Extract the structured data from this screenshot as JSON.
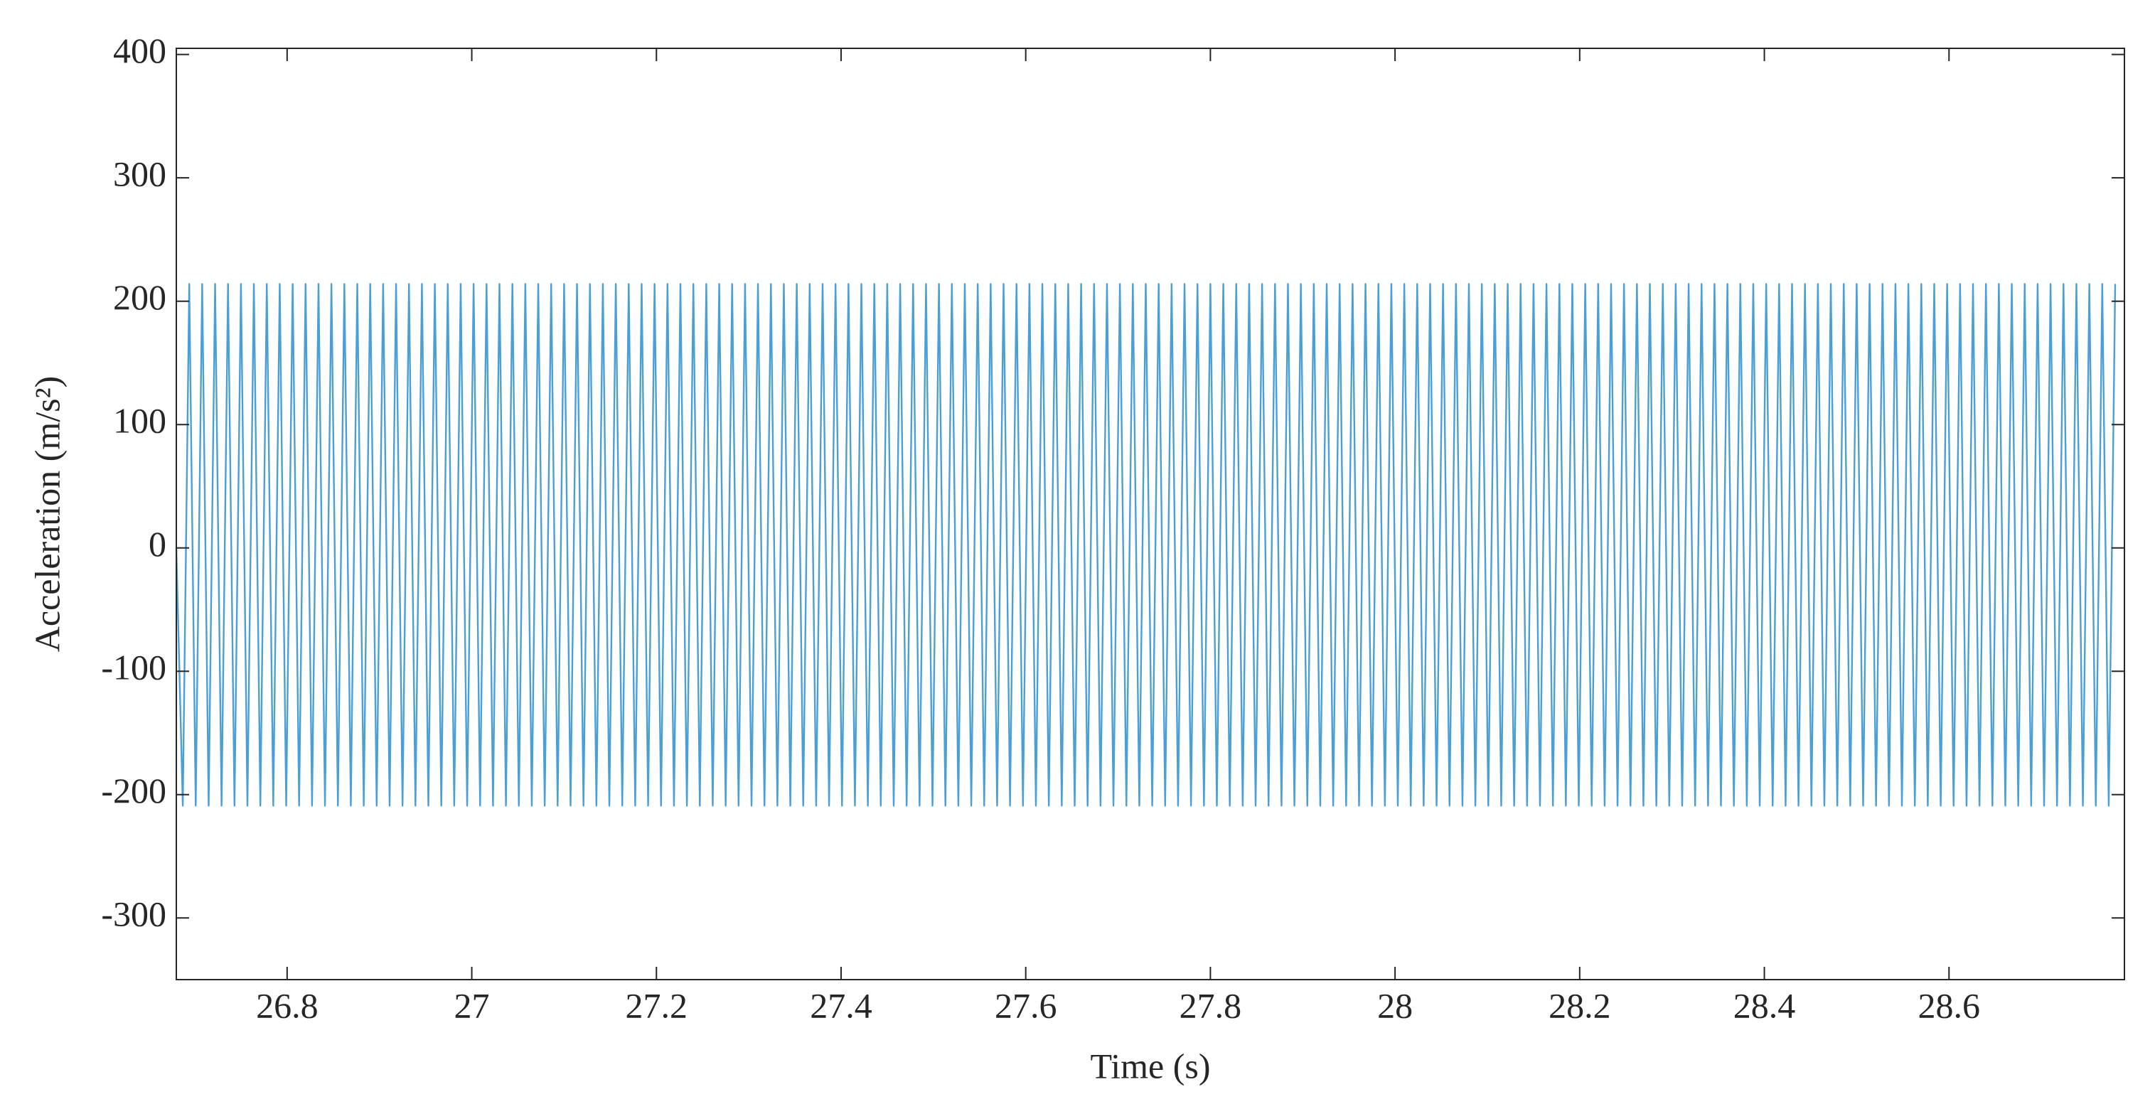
{
  "chart_data": {
    "type": "line",
    "xlabel": "Time (s)",
    "ylabel": "Acceleration (m/s²)",
    "color": "#4a9fd6",
    "xlim": [
      26.68,
      28.79
    ],
    "ylim": [
      -350,
      405
    ],
    "xticks": [
      26.8,
      27,
      27.2,
      27.4,
      27.6,
      27.8,
      28,
      28.2,
      28.4,
      28.6
    ],
    "yticks": [
      -300,
      -200,
      -100,
      0,
      100,
      200,
      300,
      400
    ],
    "x": [
      26.68,
      26.687,
      26.694,
      26.701,
      26.708,
      26.715,
      26.722,
      26.729,
      26.736,
      26.743,
      26.75,
      26.757,
      26.764,
      26.771,
      26.778,
      26.785,
      26.792,
      26.799,
      26.806,
      26.813,
      26.82,
      26.827,
      26.834,
      26.841,
      26.848,
      26.855,
      26.862,
      26.869,
      26.876,
      26.883,
      26.89,
      26.897,
      26.904,
      26.911,
      26.918,
      26.925,
      26.932,
      26.939,
      26.946,
      26.953,
      26.96,
      26.967,
      26.974,
      26.981,
      26.988,
      26.995,
      27.002,
      27.009,
      27.016,
      27.023,
      27.03,
      27.037,
      27.044,
      27.051,
      27.058,
      27.065,
      27.072,
      27.079,
      27.086,
      27.093,
      27.1,
      27.107,
      27.114,
      27.121,
      27.128,
      27.135,
      27.142,
      27.149,
      27.156,
      27.163,
      27.17,
      27.177,
      27.184,
      27.191,
      27.198,
      27.205,
      27.212,
      27.219,
      27.226,
      27.233,
      27.24,
      27.247,
      27.254,
      27.261,
      27.268,
      27.275,
      27.282,
      27.289,
      27.296,
      27.303,
      27.31,
      27.317,
      27.324,
      27.331,
      27.338,
      27.345,
      27.352,
      27.359,
      27.366,
      27.373,
      27.38,
      27.387,
      27.394,
      27.401,
      27.408,
      27.415,
      27.422,
      27.429,
      27.436,
      27.443,
      27.45,
      27.457,
      27.464,
      27.471,
      27.478,
      27.485,
      27.492,
      27.499,
      27.506,
      27.513,
      27.52,
      27.527,
      27.534,
      27.541,
      27.548,
      27.555,
      27.562,
      27.569,
      27.576,
      27.583,
      27.59,
      27.597,
      27.604,
      27.611,
      27.618,
      27.625,
      27.632,
      27.639,
      27.646,
      27.653,
      27.66,
      27.667,
      27.674,
      27.681,
      27.688,
      27.695,
      27.702,
      27.709,
      27.716,
      27.723,
      27.73,
      27.737,
      27.744,
      27.751,
      27.758,
      27.765,
      27.772,
      27.779,
      27.786,
      27.793,
      27.8,
      27.807,
      27.814,
      27.821,
      27.828,
      27.835,
      27.842,
      27.849,
      27.856,
      27.863,
      27.87,
      27.877,
      27.884,
      27.891,
      27.898,
      27.905,
      27.912,
      27.919,
      27.926,
      27.933,
      27.94,
      27.947,
      27.954,
      27.961,
      27.968,
      27.975,
      27.982,
      27.989,
      27.996,
      28.003,
      28.01,
      28.017,
      28.024,
      28.031,
      28.038,
      28.045,
      28.052,
      28.059,
      28.066,
      28.073,
      28.08,
      28.087,
      28.094,
      28.101,
      28.108,
      28.115,
      28.122,
      28.129,
      28.136,
      28.143,
      28.15,
      28.157,
      28.164,
      28.171,
      28.178,
      28.185,
      28.192,
      28.199,
      28.206,
      28.213,
      28.22,
      28.227,
      28.234,
      28.241,
      28.248,
      28.255,
      28.262,
      28.269,
      28.276,
      28.283,
      28.29,
      28.297,
      28.304,
      28.311,
      28.318,
      28.325,
      28.332,
      28.339,
      28.346,
      28.353,
      28.36,
      28.367,
      28.374,
      28.381,
      28.388,
      28.395,
      28.402,
      28.409,
      28.416,
      28.423,
      28.43,
      28.437,
      28.444,
      28.451,
      28.458,
      28.465,
      28.472,
      28.479,
      28.486,
      28.493,
      28.5,
      28.507,
      28.514,
      28.521,
      28.528,
      28.535,
      28.542,
      28.549,
      28.556,
      28.563,
      28.57,
      28.577,
      28.584,
      28.591,
      28.598,
      28.605,
      28.612,
      28.619,
      28.626,
      28.633,
      28.64,
      28.647,
      28.654,
      28.661,
      28.668,
      28.675,
      28.682,
      28.689,
      28.696,
      28.703,
      28.71,
      28.717,
      28.724,
      28.731,
      28.738,
      28.745,
      28.752,
      28.759,
      28.766,
      28.773,
      28.78
    ],
    "values": [
      0,
      -209,
      214,
      -209,
      214,
      -209,
      214,
      -209,
      214,
      -209,
      214,
      -209,
      214,
      -209,
      214,
      -209,
      214,
      -209,
      214,
      -209,
      214,
      -209,
      214,
      -209,
      214,
      -209,
      214,
      -209,
      214,
      -209,
      214,
      -209,
      214,
      -209,
      214,
      -209,
      214,
      -209,
      214,
      -209,
      214,
      -209,
      214,
      -209,
      214,
      -209,
      214,
      -209,
      214,
      -209,
      214,
      -209,
      214,
      -209,
      214,
      -209,
      214,
      -209,
      214,
      -209,
      214,
      -209,
      214,
      -209,
      214,
      -209,
      214,
      -209,
      214,
      -209,
      214,
      -209,
      214,
      -209,
      214,
      -209,
      214,
      -209,
      214,
      -209,
      214,
      -209,
      214,
      -209,
      214,
      -209,
      214,
      -209,
      214,
      -209,
      214,
      -209,
      214,
      -209,
      214,
      -209,
      214,
      -209,
      214,
      -209,
      214,
      -209,
      214,
      -209,
      214,
      -209,
      214,
      -209,
      214,
      -209,
      214,
      -209,
      214,
      -209,
      214,
      -209,
      214,
      -209,
      214,
      -209,
      214,
      -209,
      214,
      -209,
      214,
      -209,
      214,
      -209,
      214,
      -209,
      214,
      -209,
      214,
      -209,
      214,
      -209,
      214,
      -209,
      214,
      -209,
      214,
      -209,
      214,
      -209,
      214,
      -209,
      214,
      -209,
      214,
      -209,
      214,
      -209,
      214,
      -209,
      214,
      -209,
      214,
      -209,
      214,
      -209,
      214,
      -209,
      214,
      -209,
      214,
      -209,
      214,
      -209,
      214,
      -209,
      214,
      -209,
      214,
      -209,
      214,
      -209,
      214,
      -209,
      214,
      -209,
      214,
      -209,
      214,
      -209,
      214,
      -209,
      214,
      -209,
      214,
      -209,
      214,
      -209,
      214,
      -209,
      214,
      -209,
      214,
      -209,
      214,
      -209,
      214,
      -209,
      214,
      -209,
      214,
      -209,
      214,
      -209,
      214,
      -209,
      214,
      -209,
      214,
      -209,
      214,
      -209,
      214,
      -209,
      214,
      -209,
      214,
      -209,
      214,
      -209,
      214,
      -209,
      214,
      -209,
      214,
      -209,
      214,
      -209,
      214,
      -209,
      214,
      -209,
      214,
      -209,
      214,
      -209,
      214,
      -209,
      214,
      -209,
      214,
      -209,
      214,
      -209,
      214,
      -209,
      214,
      -209,
      214,
      -209,
      214,
      -209,
      214,
      -209,
      214,
      -209,
      214,
      -209,
      214,
      -209,
      214,
      -209,
      214,
      -209,
      214,
      -209,
      214,
      -209,
      214,
      -209,
      214,
      -209,
      214,
      -209,
      214,
      -209,
      214,
      -209,
      214,
      -209,
      214,
      -209,
      214,
      -209,
      214,
      -209,
      214,
      -209,
      214,
      -209,
      214,
      -209,
      214,
      -209,
      214,
      -209,
      214
    ]
  }
}
